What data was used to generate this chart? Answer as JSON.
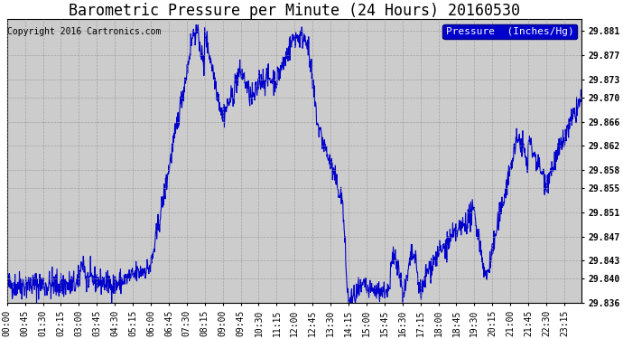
{
  "title": "Barometric Pressure per Minute (24 Hours) 20160530",
  "copyright_text": "Copyright 2016 Cartronics.com",
  "legend_label": "Pressure  (Inches/Hg)",
  "legend_bg": "#0000CC",
  "legend_fg": "#FFFFFF",
  "line_color": "#0000CC",
  "bg_color": "#CCCCCC",
  "plot_bg_color": "#CCCCCC",
  "outer_bg": "#FFFFFF",
  "grid_color": "#999999",
  "ylim": [
    29.836,
    29.883
  ],
  "yticks": [
    29.836,
    29.84,
    29.843,
    29.847,
    29.851,
    29.855,
    29.858,
    29.862,
    29.866,
    29.87,
    29.873,
    29.877,
    29.881
  ],
  "xtick_labels": [
    "00:00",
    "00:45",
    "01:30",
    "02:15",
    "03:00",
    "03:45",
    "04:30",
    "05:15",
    "06:00",
    "06:45",
    "07:30",
    "08:15",
    "09:00",
    "09:45",
    "10:30",
    "11:15",
    "12:00",
    "12:45",
    "13:30",
    "14:15",
    "15:00",
    "15:45",
    "16:30",
    "17:15",
    "18:00",
    "18:45",
    "19:30",
    "20:15",
    "21:00",
    "21:45",
    "22:30",
    "23:15"
  ],
  "title_fontsize": 12,
  "tick_fontsize": 7,
  "copyright_fontsize": 7,
  "legend_fontsize": 8,
  "linewidth": 0.8
}
